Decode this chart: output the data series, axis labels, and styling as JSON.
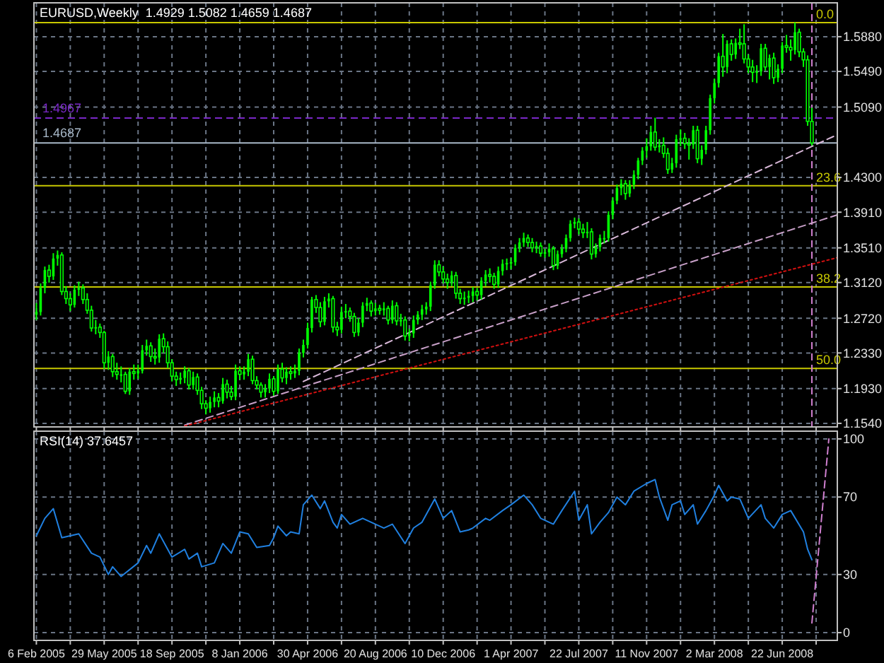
{
  "chart_data": [
    {
      "type": "candlestick",
      "title": "EURUSD,Weekly  1.4929 1.5082 1.4659 1.4687",
      "color": "#00ff00",
      "x": [
        "2005-02-06",
        "2005-02-13",
        "2005-02-20",
        "2005-02-27",
        "2005-03-06",
        "2005-03-13",
        "2005-03-20",
        "2005-03-27",
        "2005-04-03",
        "2005-04-10",
        "2005-04-17",
        "2005-04-24",
        "2005-05-01",
        "2005-05-08",
        "2005-05-15",
        "2005-05-22",
        "2005-05-29",
        "2005-06-05",
        "2005-06-12",
        "2005-06-19",
        "2005-06-26",
        "2005-07-03",
        "2005-07-10",
        "2005-07-17",
        "2005-07-24",
        "2005-07-31",
        "2005-08-07",
        "2005-08-14",
        "2005-08-21",
        "2005-08-28",
        "2005-09-04",
        "2005-09-11",
        "2005-09-18",
        "2005-09-25",
        "2005-10-02",
        "2005-10-09",
        "2005-10-16",
        "2005-10-23",
        "2005-10-30",
        "2005-11-06",
        "2005-11-13",
        "2005-11-20",
        "2005-11-27",
        "2005-12-04",
        "2005-12-11",
        "2005-12-18",
        "2005-12-25",
        "2006-01-01",
        "2006-01-08",
        "2006-01-15",
        "2006-01-22",
        "2006-01-29",
        "2006-02-05",
        "2006-02-12",
        "2006-02-19",
        "2006-02-26",
        "2006-03-05",
        "2006-03-12",
        "2006-03-19",
        "2006-03-26",
        "2006-04-02",
        "2006-04-09",
        "2006-04-16",
        "2006-04-23",
        "2006-04-30",
        "2006-05-07",
        "2006-05-14",
        "2006-05-21",
        "2006-05-28",
        "2006-06-04",
        "2006-06-11",
        "2006-06-18",
        "2006-06-25",
        "2006-07-02",
        "2006-07-09",
        "2006-07-16",
        "2006-07-23",
        "2006-07-30",
        "2006-08-06",
        "2006-08-13",
        "2006-08-20",
        "2006-08-27",
        "2006-09-03",
        "2006-09-10",
        "2006-09-17",
        "2006-09-24",
        "2006-10-01",
        "2006-10-08",
        "2006-10-15",
        "2006-10-22",
        "2006-10-29",
        "2006-11-05",
        "2006-11-12",
        "2006-11-19",
        "2006-11-26",
        "2006-12-03",
        "2006-12-10",
        "2006-12-17",
        "2006-12-24",
        "2006-12-31",
        "2007-01-07",
        "2007-01-14",
        "2007-01-21",
        "2007-01-28",
        "2007-02-04",
        "2007-02-11",
        "2007-02-18",
        "2007-02-25",
        "2007-03-04",
        "2007-03-11",
        "2007-03-18",
        "2007-03-25",
        "2007-04-01",
        "2007-04-08",
        "2007-04-15",
        "2007-04-22",
        "2007-04-29",
        "2007-05-06",
        "2007-05-13",
        "2007-05-20",
        "2007-05-27",
        "2007-06-03",
        "2007-06-10",
        "2007-06-17",
        "2007-06-24",
        "2007-07-01",
        "2007-07-08",
        "2007-07-15",
        "2007-07-22",
        "2007-07-29",
        "2007-08-05",
        "2007-08-12",
        "2007-08-19",
        "2007-08-26",
        "2007-09-02",
        "2007-09-09",
        "2007-09-16",
        "2007-09-23",
        "2007-09-30",
        "2007-10-07",
        "2007-10-14",
        "2007-10-21",
        "2007-10-28",
        "2007-11-04",
        "2007-11-11",
        "2007-11-18",
        "2007-11-25",
        "2007-12-02",
        "2007-12-09",
        "2007-12-16",
        "2007-12-23",
        "2007-12-30",
        "2008-01-06",
        "2008-01-13",
        "2008-01-20",
        "2008-01-27",
        "2008-02-03",
        "2008-02-10",
        "2008-02-17",
        "2008-02-24",
        "2008-03-02",
        "2008-03-09",
        "2008-03-16",
        "2008-03-23",
        "2008-03-30",
        "2008-04-06",
        "2008-04-13",
        "2008-04-20",
        "2008-04-27",
        "2008-05-04",
        "2008-05-11",
        "2008-05-18",
        "2008-05-25",
        "2008-06-01",
        "2008-06-08",
        "2008-06-15",
        "2008-06-22",
        "2008-06-29",
        "2008-07-06",
        "2008-07-13",
        "2008-07-20",
        "2008-07-27",
        "2008-08-03",
        "2008-08-10"
      ],
      "ohlc": [
        [
          1.276,
          1.289,
          1.27,
          1.279
        ],
        [
          1.279,
          1.311,
          1.275,
          1.306
        ],
        [
          1.306,
          1.33,
          1.3,
          1.326
        ],
        [
          1.326,
          1.332,
          1.312,
          1.319
        ],
        [
          1.319,
          1.345,
          1.315,
          1.339
        ],
        [
          1.339,
          1.348,
          1.331,
          1.343
        ],
        [
          1.343,
          1.346,
          1.298,
          1.302
        ],
        [
          1.302,
          1.308,
          1.288,
          1.294
        ],
        [
          1.294,
          1.3,
          1.28,
          1.287
        ],
        [
          1.287,
          1.309,
          1.284,
          1.304
        ],
        [
          1.304,
          1.313,
          1.297,
          1.306
        ],
        [
          1.306,
          1.31,
          1.288,
          1.293
        ],
        [
          1.293,
          1.3,
          1.277,
          1.281
        ],
        [
          1.281,
          1.286,
          1.257,
          1.261
        ],
        [
          1.261,
          1.27,
          1.254,
          1.262
        ],
        [
          1.262,
          1.266,
          1.25,
          1.256
        ],
        [
          1.256,
          1.258,
          1.215,
          1.222
        ],
        [
          1.222,
          1.235,
          1.214,
          1.229
        ],
        [
          1.229,
          1.232,
          1.206,
          1.212
        ],
        [
          1.212,
          1.222,
          1.203,
          1.209
        ],
        [
          1.209,
          1.218,
          1.2,
          1.209
        ],
        [
          1.209,
          1.212,
          1.187,
          1.19
        ],
        [
          1.19,
          1.216,
          1.186,
          1.212
        ],
        [
          1.212,
          1.22,
          1.203,
          1.21
        ],
        [
          1.21,
          1.22,
          1.204,
          1.213
        ],
        [
          1.213,
          1.242,
          1.21,
          1.236
        ],
        [
          1.236,
          1.248,
          1.23,
          1.241
        ],
        [
          1.241,
          1.245,
          1.223,
          1.229
        ],
        [
          1.229,
          1.238,
          1.22,
          1.228
        ],
        [
          1.228,
          1.254,
          1.222,
          1.249
        ],
        [
          1.249,
          1.255,
          1.233,
          1.24
        ],
        [
          1.24,
          1.246,
          1.216,
          1.222
        ],
        [
          1.222,
          1.226,
          1.201,
          1.207
        ],
        [
          1.207,
          1.212,
          1.196,
          1.203
        ],
        [
          1.203,
          1.211,
          1.198,
          1.205
        ],
        [
          1.205,
          1.218,
          1.199,
          1.213
        ],
        [
          1.213,
          1.216,
          1.192,
          1.197
        ],
        [
          1.197,
          1.212,
          1.192,
          1.206
        ],
        [
          1.206,
          1.21,
          1.186,
          1.191
        ],
        [
          1.191,
          1.195,
          1.17,
          1.176
        ],
        [
          1.176,
          1.18,
          1.164,
          1.171
        ],
        [
          1.171,
          1.184,
          1.166,
          1.178
        ],
        [
          1.178,
          1.19,
          1.172,
          1.183
        ],
        [
          1.183,
          1.188,
          1.172,
          1.179
        ],
        [
          1.179,
          1.205,
          1.176,
          1.198
        ],
        [
          1.198,
          1.203,
          1.182,
          1.189
        ],
        [
          1.189,
          1.196,
          1.18,
          1.184
        ],
        [
          1.184,
          1.22,
          1.18,
          1.213
        ],
        [
          1.213,
          1.218,
          1.203,
          1.209
        ],
        [
          1.209,
          1.218,
          1.203,
          1.212
        ],
        [
          1.212,
          1.232,
          1.207,
          1.226
        ],
        [
          1.226,
          1.23,
          1.198,
          1.202
        ],
        [
          1.202,
          1.207,
          1.192,
          1.197
        ],
        [
          1.197,
          1.2,
          1.183,
          1.189
        ],
        [
          1.189,
          1.198,
          1.183,
          1.193
        ],
        [
          1.193,
          1.21,
          1.188,
          1.204
        ],
        [
          1.204,
          1.207,
          1.185,
          1.19
        ],
        [
          1.19,
          1.22,
          1.187,
          1.215
        ],
        [
          1.215,
          1.222,
          1.2,
          1.205
        ],
        [
          1.205,
          1.217,
          1.198,
          1.212
        ],
        [
          1.212,
          1.218,
          1.203,
          1.21
        ],
        [
          1.21,
          1.22,
          1.205,
          1.213
        ],
        [
          1.213,
          1.238,
          1.208,
          1.233
        ],
        [
          1.233,
          1.248,
          1.228,
          1.242
        ],
        [
          1.242,
          1.267,
          1.238,
          1.261
        ],
        [
          1.261,
          1.296,
          1.256,
          1.293
        ],
        [
          1.293,
          1.298,
          1.278,
          1.284
        ],
        [
          1.284,
          1.29,
          1.262,
          1.268
        ],
        [
          1.268,
          1.296,
          1.264,
          1.291
        ],
        [
          1.291,
          1.3,
          1.284,
          1.294
        ],
        [
          1.294,
          1.297,
          1.256,
          1.262
        ],
        [
          1.262,
          1.268,
          1.252,
          1.259
        ],
        [
          1.259,
          1.285,
          1.255,
          1.279
        ],
        [
          1.279,
          1.288,
          1.272,
          1.28
        ],
        [
          1.28,
          1.284,
          1.268,
          1.274
        ],
        [
          1.274,
          1.278,
          1.251,
          1.256
        ],
        [
          1.256,
          1.272,
          1.252,
          1.267
        ],
        [
          1.267,
          1.29,
          1.262,
          1.286
        ],
        [
          1.286,
          1.295,
          1.28,
          1.289
        ],
        [
          1.289,
          1.292,
          1.274,
          1.28
        ],
        [
          1.28,
          1.289,
          1.275,
          1.283
        ],
        [
          1.283,
          1.287,
          1.276,
          1.281
        ],
        [
          1.281,
          1.29,
          1.275,
          1.283
        ],
        [
          1.283,
          1.286,
          1.265,
          1.27
        ],
        [
          1.27,
          1.292,
          1.266,
          1.286
        ],
        [
          1.286,
          1.29,
          1.264,
          1.269
        ],
        [
          1.269,
          1.277,
          1.263,
          1.27
        ],
        [
          1.27,
          1.274,
          1.247,
          1.252
        ],
        [
          1.252,
          1.26,
          1.246,
          1.255
        ],
        [
          1.255,
          1.275,
          1.25,
          1.27
        ],
        [
          1.27,
          1.28,
          1.265,
          1.276
        ],
        [
          1.276,
          1.287,
          1.27,
          1.282
        ],
        [
          1.282,
          1.29,
          1.276,
          1.285
        ],
        [
          1.285,
          1.313,
          1.28,
          1.309
        ],
        [
          1.309,
          1.337,
          1.305,
          1.332
        ],
        [
          1.332,
          1.337,
          1.319,
          1.324
        ],
        [
          1.324,
          1.33,
          1.311,
          1.316
        ],
        [
          1.316,
          1.322,
          1.305,
          1.312
        ],
        [
          1.312,
          1.325,
          1.308,
          1.32
        ],
        [
          1.32,
          1.324,
          1.294,
          1.3
        ],
        [
          1.3,
          1.305,
          1.288,
          1.294
        ],
        [
          1.294,
          1.302,
          1.287,
          1.295
        ],
        [
          1.295,
          1.303,
          1.289,
          1.297
        ],
        [
          1.297,
          1.307,
          1.29,
          1.302
        ],
        [
          1.302,
          1.306,
          1.292,
          1.298
        ],
        [
          1.298,
          1.318,
          1.293,
          1.314
        ],
        [
          1.314,
          1.326,
          1.308,
          1.321
        ],
        [
          1.321,
          1.328,
          1.312,
          1.319
        ],
        [
          1.319,
          1.323,
          1.305,
          1.31
        ],
        [
          1.31,
          1.33,
          1.306,
          1.325
        ],
        [
          1.325,
          1.338,
          1.32,
          1.333
        ],
        [
          1.333,
          1.339,
          1.326,
          1.334
        ],
        [
          1.334,
          1.34,
          1.327,
          1.335
        ],
        [
          1.335,
          1.355,
          1.331,
          1.351
        ],
        [
          1.351,
          1.362,
          1.346,
          1.357
        ],
        [
          1.357,
          1.368,
          1.352,
          1.362
        ],
        [
          1.362,
          1.366,
          1.352,
          1.357
        ],
        [
          1.357,
          1.362,
          1.346,
          1.351
        ],
        [
          1.351,
          1.358,
          1.345,
          1.353
        ],
        [
          1.353,
          1.357,
          1.341,
          1.345
        ],
        [
          1.345,
          1.35,
          1.34,
          1.346
        ],
        [
          1.346,
          1.356,
          1.341,
          1.35
        ],
        [
          1.35,
          1.353,
          1.326,
          1.331
        ],
        [
          1.331,
          1.348,
          1.327,
          1.344
        ],
        [
          1.344,
          1.355,
          1.34,
          1.35
        ],
        [
          1.35,
          1.366,
          1.346,
          1.362
        ],
        [
          1.362,
          1.382,
          1.358,
          1.378
        ],
        [
          1.378,
          1.385,
          1.373,
          1.38
        ],
        [
          1.38,
          1.384,
          1.366,
          1.372
        ],
        [
          1.372,
          1.378,
          1.362,
          1.368
        ],
        [
          1.368,
          1.38,
          1.362,
          1.369
        ],
        [
          1.369,
          1.373,
          1.338,
          1.344
        ],
        [
          1.344,
          1.356,
          1.34,
          1.352
        ],
        [
          1.352,
          1.366,
          1.347,
          1.362
        ],
        [
          1.362,
          1.37,
          1.356,
          1.362
        ],
        [
          1.362,
          1.392,
          1.358,
          1.388
        ],
        [
          1.388,
          1.408,
          1.383,
          1.404
        ],
        [
          1.404,
          1.422,
          1.4,
          1.418
        ],
        [
          1.418,
          1.428,
          1.41,
          1.423
        ],
        [
          1.423,
          1.427,
          1.405,
          1.412
        ],
        [
          1.412,
          1.427,
          1.408,
          1.422
        ],
        [
          1.422,
          1.438,
          1.417,
          1.433
        ],
        [
          1.433,
          1.452,
          1.428,
          1.449
        ],
        [
          1.449,
          1.464,
          1.444,
          1.46
        ],
        [
          1.46,
          1.474,
          1.452,
          1.465
        ],
        [
          1.465,
          1.488,
          1.46,
          1.481
        ],
        [
          1.481,
          1.497,
          1.46,
          1.464
        ],
        [
          1.464,
          1.473,
          1.458,
          1.466
        ],
        [
          1.466,
          1.475,
          1.452,
          1.457
        ],
        [
          1.457,
          1.463,
          1.434,
          1.439
        ],
        [
          1.439,
          1.452,
          1.435,
          1.446
        ],
        [
          1.446,
          1.478,
          1.441,
          1.473
        ],
        [
          1.473,
          1.484,
          1.465,
          1.474
        ],
        [
          1.474,
          1.48,
          1.462,
          1.468
        ],
        [
          1.468,
          1.474,
          1.45,
          1.467
        ],
        [
          1.467,
          1.488,
          1.462,
          1.483
        ],
        [
          1.483,
          1.488,
          1.446,
          1.451
        ],
        [
          1.451,
          1.466,
          1.444,
          1.461
        ],
        [
          1.461,
          1.488,
          1.456,
          1.483
        ],
        [
          1.483,
          1.523,
          1.478,
          1.519
        ],
        [
          1.519,
          1.541,
          1.513,
          1.536
        ],
        [
          1.536,
          1.57,
          1.531,
          1.566
        ],
        [
          1.566,
          1.591,
          1.543,
          1.554
        ],
        [
          1.554,
          1.584,
          1.547,
          1.58
        ],
        [
          1.58,
          1.585,
          1.561,
          1.568
        ],
        [
          1.568,
          1.586,
          1.563,
          1.581
        ],
        [
          1.581,
          1.597,
          1.574,
          1.58
        ],
        [
          1.58,
          1.602,
          1.558,
          1.563
        ],
        [
          1.563,
          1.568,
          1.547,
          1.554
        ],
        [
          1.554,
          1.562,
          1.537,
          1.548
        ],
        [
          1.548,
          1.556,
          1.536,
          1.549
        ],
        [
          1.549,
          1.58,
          1.544,
          1.575
        ],
        [
          1.575,
          1.58,
          1.55,
          1.554
        ],
        [
          1.554,
          1.568,
          1.54,
          1.564
        ],
        [
          1.564,
          1.57,
          1.535,
          1.542
        ],
        [
          1.542,
          1.557,
          1.537,
          1.552
        ],
        [
          1.552,
          1.582,
          1.547,
          1.578
        ],
        [
          1.578,
          1.59,
          1.57,
          1.576
        ],
        [
          1.576,
          1.585,
          1.561,
          1.573
        ],
        [
          1.573,
          1.604,
          1.568,
          1.593
        ],
        [
          1.593,
          1.597,
          1.565,
          1.571
        ],
        [
          1.571,
          1.575,
          1.554,
          1.562
        ],
        [
          1.562,
          1.567,
          1.488,
          1.493
        ],
        [
          1.4929,
          1.5082,
          1.4659,
          1.4687
        ]
      ],
      "series": [
        {
          "type": "line",
          "x": [
            "2006-04-23",
            "2008-09-21"
          ],
          "values": [
            1.201,
            1.478
          ],
          "color": "#d8b8d8",
          "line_style": "dashed"
        },
        {
          "type": "line",
          "x": [
            "2005-10-09",
            "2008-09-21"
          ],
          "values": [
            1.152,
            1.388
          ],
          "color": "#c8a0c8",
          "line_style": "dashed"
        },
        {
          "type": "line",
          "x": [
            "2005-10-09",
            "2008-09-21"
          ],
          "values": [
            1.151,
            1.34
          ],
          "color": "#d01010",
          "line_style": "dotted"
        }
      ],
      "ref_lines": [
        {
          "axis": "y",
          "value": 1.6038,
          "color": "#c8c800"
        },
        {
          "axis": "y",
          "value": 1.4207,
          "color": "#c8c800"
        },
        {
          "axis": "y",
          "value": 1.307,
          "color": "#c8c800"
        },
        {
          "axis": "y",
          "value": 1.2156,
          "color": "#c8c800"
        },
        {
          "axis": "y",
          "value": 1.4967,
          "label": "1.4967",
          "color": "#7a28c8",
          "line_style": "dashed"
        },
        {
          "axis": "y",
          "value": 1.4687,
          "label": "1.4687",
          "color": "#a8b8c8"
        },
        {
          "axis": "x",
          "value": "2008-08-10",
          "color": "#d080d0",
          "line_style": "dashed"
        }
      ],
      "annotations": [
        {
          "text": "0.0",
          "x": "2008-08-10",
          "y": 1.6038
        },
        {
          "text": "23.6",
          "x": "2008-08-10",
          "y": 1.4207
        },
        {
          "text": "38.2",
          "x": "2008-08-10",
          "y": 1.307
        },
        {
          "text": "50.0",
          "x": "2008-08-10",
          "y": 1.2156
        }
      ],
      "xlim": [
        "2005-02-02",
        "2008-09-21"
      ],
      "ylim": [
        1.15,
        1.626
      ],
      "xticks": [
        {
          "value": "2005-02-06",
          "label": null
        },
        {
          "value": "2005-04-03",
          "label": null
        },
        {
          "value": "2005-05-29",
          "label": null
        },
        {
          "value": "2005-07-24",
          "label": null
        },
        {
          "value": "2005-09-18",
          "label": null
        },
        {
          "value": "2005-11-13",
          "label": null
        },
        {
          "value": "2006-01-08",
          "label": null
        },
        {
          "value": "2006-03-05",
          "label": null
        },
        {
          "value": "2006-04-30",
          "label": null
        },
        {
          "value": "2006-06-25",
          "label": null
        },
        {
          "value": "2006-08-20",
          "label": null
        },
        {
          "value": "2006-10-15",
          "label": null
        },
        {
          "value": "2006-12-10",
          "label": null
        },
        {
          "value": "2007-02-04",
          "label": null
        },
        {
          "value": "2007-04-01",
          "label": null
        },
        {
          "value": "2007-05-27",
          "label": null
        },
        {
          "value": "2007-07-22",
          "label": null
        },
        {
          "value": "2007-09-16",
          "label": null
        },
        {
          "value": "2007-11-11",
          "label": null
        },
        {
          "value": "2008-01-06",
          "label": null
        },
        {
          "value": "2008-03-02",
          "label": null
        },
        {
          "value": "2008-04-27",
          "label": null
        },
        {
          "value": "2008-06-22",
          "label": null
        },
        {
          "value": "2008-08-17",
          "label": null
        }
      ],
      "yticks": [
        {
          "value": 1.588,
          "label": "1.5880"
        },
        {
          "value": 1.549,
          "label": "1.5490"
        },
        {
          "value": 1.509,
          "label": "1.5090"
        },
        {
          "value": 1.43,
          "label": "1.4300"
        },
        {
          "value": 1.391,
          "label": "1.3910"
        },
        {
          "value": 1.351,
          "label": "1.3510"
        },
        {
          "value": 1.312,
          "label": "1.3120"
        },
        {
          "value": 1.272,
          "label": "1.2720"
        },
        {
          "value": 1.233,
          "label": "1.2330"
        },
        {
          "value": 1.193,
          "label": "1.1930"
        },
        {
          "value": 1.154,
          "label": "1.1540"
        }
      ],
      "tick_labels": "y",
      "grid": true
    },
    {
      "type": "line",
      "title": "RSI(14) 37.6457",
      "series": [
        {
          "x": [
            "2005-02-06",
            "2005-02-20",
            "2005-03-06",
            "2005-03-20",
            "2005-04-17",
            "2005-05-08",
            "2005-05-22",
            "2005-06-05",
            "2005-06-12",
            "2005-06-26",
            "2005-07-24",
            "2005-08-07",
            "2005-08-14",
            "2005-08-28",
            "2005-09-18",
            "2005-10-09",
            "2005-10-16",
            "2005-10-30",
            "2005-11-06",
            "2005-11-27",
            "2005-12-11",
            "2005-12-25",
            "2006-01-08",
            "2006-01-22",
            "2006-02-05",
            "2006-02-26",
            "2006-03-05",
            "2006-03-12",
            "2006-03-26",
            "2006-04-02",
            "2006-04-16",
            "2006-04-23",
            "2006-05-07",
            "2006-05-21",
            "2006-05-28",
            "2006-06-11",
            "2006-06-18",
            "2006-06-25",
            "2006-07-09",
            "2006-07-30",
            "2006-08-13",
            "2006-09-03",
            "2006-09-17",
            "2006-10-08",
            "2006-10-22",
            "2006-11-05",
            "2006-11-26",
            "2006-12-10",
            "2006-12-24",
            "2007-01-07",
            "2007-01-21",
            "2007-01-28",
            "2007-02-18",
            "2007-02-25",
            "2007-03-18",
            "2007-04-01",
            "2007-04-22",
            "2007-05-06",
            "2007-05-20",
            "2007-06-10",
            "2007-06-24",
            "2007-07-15",
            "2007-07-22",
            "2007-08-05",
            "2007-08-12",
            "2007-08-26",
            "2007-09-09",
            "2007-09-23",
            "2007-10-07",
            "2007-10-21",
            "2007-11-11",
            "2007-11-25",
            "2007-12-02",
            "2007-12-16",
            "2007-12-23",
            "2008-01-06",
            "2008-01-13",
            "2008-01-27",
            "2008-02-03",
            "2008-02-17",
            "2008-03-02",
            "2008-03-09",
            "2008-03-23",
            "2008-03-30",
            "2008-04-13",
            "2008-04-27",
            "2008-05-18",
            "2008-05-25",
            "2008-06-08",
            "2008-06-22",
            "2008-07-06",
            "2008-07-27",
            "2008-08-03",
            "2008-08-10"
          ],
          "values": [
            50,
            59,
            64,
            49,
            51,
            41,
            39,
            30,
            34,
            29,
            36,
            45,
            41,
            51,
            39,
            43,
            38,
            41,
            34,
            36,
            46,
            41,
            52,
            51,
            44,
            45,
            49,
            55,
            50,
            52,
            51,
            66,
            71,
            64,
            68,
            57,
            54,
            61,
            56,
            59,
            57,
            54,
            56,
            46,
            54,
            57,
            69,
            59,
            63,
            52,
            53,
            54,
            59,
            58,
            63,
            66,
            71,
            66,
            59,
            56,
            63,
            73,
            58,
            66,
            51,
            57,
            62,
            70,
            66,
            73,
            77,
            79,
            70,
            58,
            66,
            68,
            61,
            66,
            56,
            63,
            71,
            76,
            68,
            70,
            69,
            59,
            66,
            59,
            54,
            61,
            63,
            52,
            43,
            37.6
          ],
          "color": "#2080e0"
        },
        {
          "x": [
            "2008-08-10",
            "2008-09-07"
          ],
          "values": [
            5,
            100
          ],
          "color": "#d080d0",
          "line_style": "dashed"
        }
      ],
      "xlim": [
        "2005-02-02",
        "2008-09-21"
      ],
      "ylim": [
        -4,
        104
      ],
      "xticks": [
        {
          "value": "2005-02-06",
          "label": "6 Feb 2005"
        },
        {
          "value": "2005-04-03",
          "label": null
        },
        {
          "value": "2005-05-29",
          "label": "29 May 2005"
        },
        {
          "value": "2005-07-24",
          "label": null
        },
        {
          "value": "2005-09-18",
          "label": "18 Sep 2005"
        },
        {
          "value": "2005-11-13",
          "label": null
        },
        {
          "value": "2006-01-08",
          "label": "8 Jan 2006"
        },
        {
          "value": "2006-03-05",
          "label": null
        },
        {
          "value": "2006-04-30",
          "label": "30 Apr 2006"
        },
        {
          "value": "2006-06-25",
          "label": null
        },
        {
          "value": "2006-08-20",
          "label": "20 Aug 2006"
        },
        {
          "value": "2006-10-15",
          "label": null
        },
        {
          "value": "2006-12-10",
          "label": "10 Dec 2006"
        },
        {
          "value": "2007-02-04",
          "label": null
        },
        {
          "value": "2007-04-01",
          "label": "1 Apr 2007"
        },
        {
          "value": "2007-05-27",
          "label": null
        },
        {
          "value": "2007-07-22",
          "label": "22 Jul 2007"
        },
        {
          "value": "2007-09-16",
          "label": null
        },
        {
          "value": "2007-11-11",
          "label": "11 Nov 2007"
        },
        {
          "value": "2008-01-06",
          "label": null
        },
        {
          "value": "2008-03-02",
          "label": "2 Mar 2008"
        },
        {
          "value": "2008-04-27",
          "label": null
        },
        {
          "value": "2008-06-22",
          "label": "22 Jun 2008"
        },
        {
          "value": "2008-08-17",
          "label": null
        }
      ],
      "yticks": [
        0,
        30,
        70,
        100
      ],
      "grid": true
    }
  ]
}
